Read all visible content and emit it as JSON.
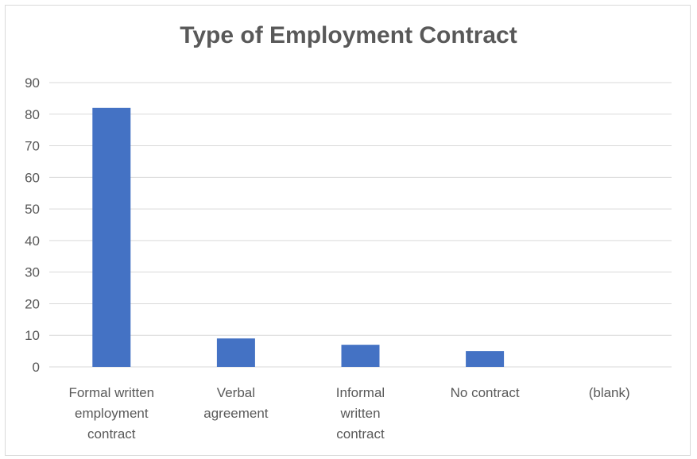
{
  "chart_data": {
    "type": "bar",
    "title": "Type of Employment Contract",
    "categories": [
      [
        "Formal written",
        "employment",
        "contract"
      ],
      [
        "Verbal",
        "agreement"
      ],
      [
        "Informal",
        "written",
        "contract"
      ],
      [
        "No contract"
      ],
      [
        "(blank)"
      ]
    ],
    "values": [
      82,
      9,
      7,
      5,
      0
    ],
    "ylim": [
      0,
      90
    ],
    "yticks": [
      0,
      10,
      20,
      30,
      40,
      50,
      60,
      70,
      80,
      90
    ],
    "grid": true,
    "legend": "none",
    "bar_color": "#4472C4",
    "grid_color": "#d9d9d9",
    "text_color": "#595959"
  }
}
